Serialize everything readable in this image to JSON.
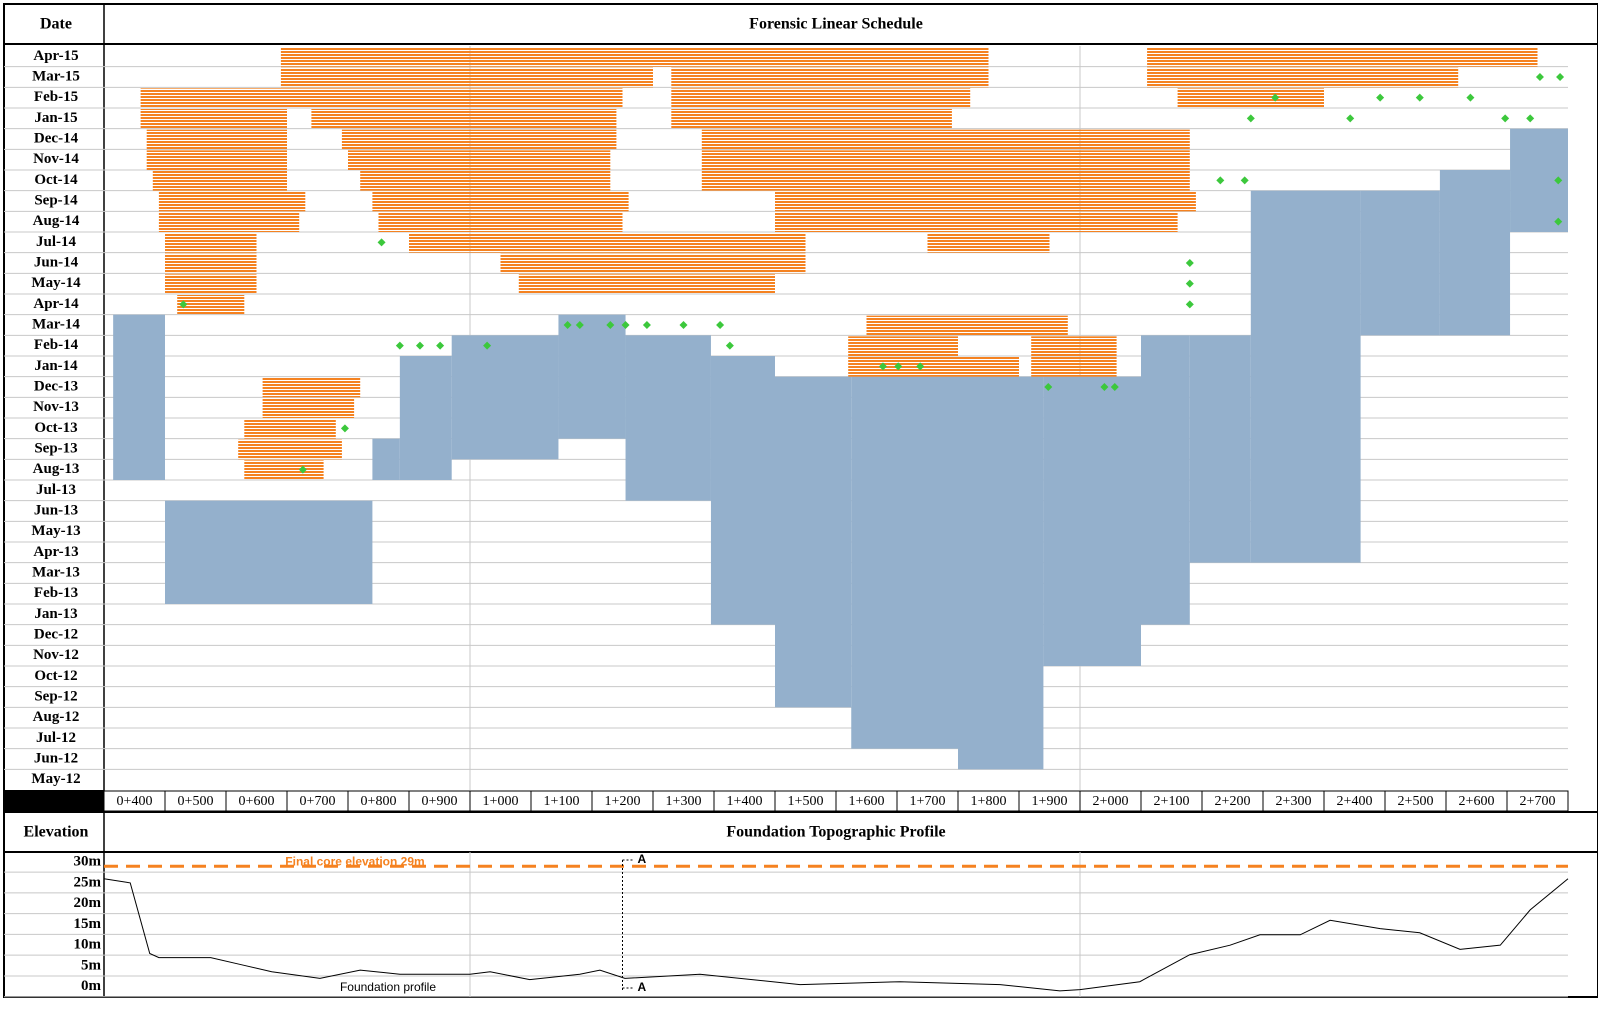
{
  "chart_data": [
    {
      "type": "linear-schedule",
      "title": "Forensic Linear Schedule",
      "y_label": "Date",
      "categories": [
        "May-12",
        "Jun-12",
        "Jul-12",
        "Aug-12",
        "Sep-12",
        "Oct-12",
        "Nov-12",
        "Dec-12",
        "Jan-13",
        "Feb-13",
        "Mar-13",
        "Apr-13",
        "May-13",
        "Jun-13",
        "Jul-13",
        "Aug-13",
        "Sep-13",
        "Oct-13",
        "Nov-13",
        "Dec-13",
        "Jan-14",
        "Feb-14",
        "Mar-14",
        "Apr-14",
        "May-14",
        "Jun-14",
        "Jul-14",
        "Aug-14",
        "Sep-14",
        "Oct-14",
        "Nov-14",
        "Dec-14",
        "Jan-15",
        "Feb-15",
        "Mar-15",
        "Apr-15"
      ],
      "xlim": [
        400,
        2800
      ],
      "xticks": [
        {
          "value": 400,
          "label": "0+400"
        },
        {
          "value": 500,
          "label": "0+500"
        },
        {
          "value": 600,
          "label": "0+600"
        },
        {
          "value": 700,
          "label": "0+700"
        },
        {
          "value": 800,
          "label": "0+800"
        },
        {
          "value": 900,
          "label": "0+900"
        },
        {
          "value": 1000,
          "label": "1+000"
        },
        {
          "value": 1100,
          "label": "1+100"
        },
        {
          "value": 1200,
          "label": "1+200"
        },
        {
          "value": 1300,
          "label": "1+300"
        },
        {
          "value": 1400,
          "label": "1+400"
        },
        {
          "value": 1500,
          "label": "1+500"
        },
        {
          "value": 1600,
          "label": "1+600"
        },
        {
          "value": 1700,
          "label": "1+700"
        },
        {
          "value": 1800,
          "label": "1+800"
        },
        {
          "value": 1900,
          "label": "1+900"
        },
        {
          "value": 2000,
          "label": "2+000"
        },
        {
          "value": 2100,
          "label": "2+100"
        },
        {
          "value": 2200,
          "label": "2+200"
        },
        {
          "value": 2300,
          "label": "2+300"
        },
        {
          "value": 2400,
          "label": "2+400"
        },
        {
          "value": 2500,
          "label": "2+500"
        },
        {
          "value": 2600,
          "label": "2+600"
        },
        {
          "value": 2700,
          "label": "2+700"
        }
      ],
      "blocked_areas": {
        "color": "#94b0cc",
        "areas": [
          {
            "x": [
              415,
              500
            ],
            "months": [
              "Aug-13",
              "Mar-14"
            ]
          },
          {
            "x": [
              500,
              840
            ],
            "months": [
              "Feb-13",
              "Jun-13"
            ]
          },
          {
            "x": [
              840,
              885
            ],
            "months": [
              "Aug-13",
              "Sep-13"
            ]
          },
          {
            "x": [
              885,
              970
            ],
            "months": [
              "Aug-13",
              "Jan-14"
            ]
          },
          {
            "x": [
              970,
              1145
            ],
            "months": [
              "Sep-13",
              "Feb-14"
            ]
          },
          {
            "x": [
              1145,
              1255
            ],
            "months": [
              "Oct-13",
              "Mar-14"
            ]
          },
          {
            "x": [
              1255,
              1395
            ],
            "months": [
              "Jul-13",
              "Feb-14"
            ]
          },
          {
            "x": [
              1395,
              1500
            ],
            "months": [
              "Jan-13",
              "Jan-14"
            ]
          },
          {
            "x": [
              1500,
              1625
            ],
            "months": [
              "Sep-12",
              "Dec-13"
            ]
          },
          {
            "x": [
              1625,
              1800
            ],
            "months": [
              "Jul-12",
              "Dec-13"
            ]
          },
          {
            "x": [
              1800,
              1940
            ],
            "months": [
              "Jun-12",
              "Dec-13"
            ]
          },
          {
            "x": [
              1940,
              2100
            ],
            "months": [
              "Nov-12",
              "Dec-13"
            ]
          },
          {
            "x": [
              2100,
              2180
            ],
            "months": [
              "Jan-13",
              "Feb-14"
            ]
          },
          {
            "x": [
              2180,
              2280
            ],
            "months": [
              "Apr-13",
              "Feb-14"
            ]
          },
          {
            "x": [
              2280,
              2460
            ],
            "months": [
              "Apr-13",
              "Sep-14"
            ]
          },
          {
            "x": [
              2460,
              2590
            ],
            "months": [
              "Mar-14",
              "Sep-14"
            ]
          },
          {
            "x": [
              2590,
              2705
            ],
            "months": [
              "Mar-14",
              "Oct-14"
            ]
          },
          {
            "x": [
              2705,
              2800
            ],
            "months": [
              "Aug-14",
              "Dec-14"
            ]
          }
        ]
      },
      "work": {
        "color": "#f58220",
        "items": [
          {
            "month": "Apr-15",
            "x": [
              690,
              1850
            ]
          },
          {
            "month": "Apr-15",
            "x": [
              2110,
              2750
            ]
          },
          {
            "month": "Mar-15",
            "x": [
              690,
              1300
            ]
          },
          {
            "month": "Mar-15",
            "x": [
              1330,
              1850
            ]
          },
          {
            "month": "Mar-15",
            "x": [
              2110,
              2620
            ]
          },
          {
            "month": "Feb-15",
            "x": [
              460,
              1250
            ]
          },
          {
            "month": "Feb-15",
            "x": [
              1330,
              1820
            ]
          },
          {
            "month": "Feb-15",
            "x": [
              2160,
              2400
            ]
          },
          {
            "month": "Jan-15",
            "x": [
              460,
              700
            ]
          },
          {
            "month": "Jan-15",
            "x": [
              740,
              1240
            ]
          },
          {
            "month": "Jan-15",
            "x": [
              1330,
              1790
            ]
          },
          {
            "month": "Dec-14",
            "x": [
              470,
              700
            ]
          },
          {
            "month": "Dec-14",
            "x": [
              790,
              1240
            ]
          },
          {
            "month": "Dec-14",
            "x": [
              1380,
              2180
            ]
          },
          {
            "month": "Nov-14",
            "x": [
              470,
              700
            ]
          },
          {
            "month": "Nov-14",
            "x": [
              800,
              1230
            ]
          },
          {
            "month": "Nov-14",
            "x": [
              1380,
              2180
            ]
          },
          {
            "month": "Oct-14",
            "x": [
              480,
              700
            ]
          },
          {
            "month": "Oct-14",
            "x": [
              820,
              1230
            ]
          },
          {
            "month": "Oct-14",
            "x": [
              1380,
              2180
            ]
          },
          {
            "month": "Sep-14",
            "x": [
              490,
              730
            ]
          },
          {
            "month": "Sep-14",
            "x": [
              840,
              1260
            ]
          },
          {
            "month": "Sep-14",
            "x": [
              1500,
              2190
            ]
          },
          {
            "month": "Aug-14",
            "x": [
              490,
              720
            ]
          },
          {
            "month": "Aug-14",
            "x": [
              850,
              1250
            ]
          },
          {
            "month": "Aug-14",
            "x": [
              1500,
              2160
            ]
          },
          {
            "month": "Jul-14",
            "x": [
              500,
              650
            ]
          },
          {
            "month": "Jul-14",
            "x": [
              900,
              1550
            ]
          },
          {
            "month": "Jul-14",
            "x": [
              1750,
              1950
            ]
          },
          {
            "month": "Jun-14",
            "x": [
              500,
              650
            ]
          },
          {
            "month": "Jun-14",
            "x": [
              1050,
              1550
            ]
          },
          {
            "month": "May-14",
            "x": [
              500,
              650
            ]
          },
          {
            "month": "May-14",
            "x": [
              1080,
              1500
            ]
          },
          {
            "month": "Apr-14",
            "x": [
              520,
              630
            ]
          },
          {
            "month": "Mar-14",
            "x": [
              1650,
              1980
            ]
          },
          {
            "month": "Feb-14",
            "x": [
              1620,
              1800
            ]
          },
          {
            "month": "Feb-14",
            "x": [
              1920,
              2060
            ]
          },
          {
            "month": "Jan-14",
            "x": [
              1620,
              1900
            ]
          },
          {
            "month": "Jan-14",
            "x": [
              1920,
              2060
            ]
          },
          {
            "month": "Dec-13",
            "x": [
              660,
              820
            ]
          },
          {
            "month": "Nov-13",
            "x": [
              660,
              810
            ]
          },
          {
            "month": "Oct-13",
            "x": [
              630,
              780
            ]
          },
          {
            "month": "Sep-13",
            "x": [
              620,
              790
            ]
          },
          {
            "month": "Aug-13",
            "x": [
              630,
              760
            ]
          }
        ]
      },
      "milestones": {
        "color": "#3cc83c",
        "points": [
          {
            "month": "Apr-14",
            "x": 530
          },
          {
            "month": "Jul-14",
            "x": 855
          },
          {
            "month": "Mar-14",
            "x": 1160
          },
          {
            "month": "Mar-14",
            "x": 1180
          },
          {
            "month": "Mar-14",
            "x": 1230
          },
          {
            "month": "Mar-14",
            "x": 1255
          },
          {
            "month": "Mar-14",
            "x": 1290
          },
          {
            "month": "Mar-14",
            "x": 1350
          },
          {
            "month": "Mar-14",
            "x": 1410
          },
          {
            "month": "Feb-14",
            "x": 885
          },
          {
            "month": "Feb-14",
            "x": 918
          },
          {
            "month": "Feb-14",
            "x": 951
          },
          {
            "month": "Feb-14",
            "x": 1028
          },
          {
            "month": "Feb-14",
            "x": 1426
          },
          {
            "month": "Jan-14",
            "x": 1677
          },
          {
            "month": "Jan-14",
            "x": 1702
          },
          {
            "month": "Jan-14",
            "x": 1738
          },
          {
            "month": "Dec-13",
            "x": 1948
          },
          {
            "month": "Dec-13",
            "x": 2040
          },
          {
            "month": "Dec-13",
            "x": 2057
          },
          {
            "month": "Oct-13",
            "x": 795
          },
          {
            "month": "Aug-13",
            "x": 726
          },
          {
            "month": "Jan-15",
            "x": 2280
          },
          {
            "month": "Jan-15",
            "x": 2443
          },
          {
            "month": "Feb-15",
            "x": 2320
          },
          {
            "month": "Feb-15",
            "x": 2492
          },
          {
            "month": "Feb-15",
            "x": 2557
          },
          {
            "month": "Feb-15",
            "x": 2640
          },
          {
            "month": "Jun-14",
            "x": 2180
          },
          {
            "month": "May-14",
            "x": 2180
          },
          {
            "month": "Apr-14",
            "x": 2180
          },
          {
            "month": "Oct-14",
            "x": 2230
          },
          {
            "month": "Oct-14",
            "x": 2270
          },
          {
            "month": "Mar-15",
            "x": 2754
          },
          {
            "month": "Mar-15",
            "x": 2787
          },
          {
            "month": "Jan-15",
            "x": 2697
          },
          {
            "month": "Jan-15",
            "x": 2738
          },
          {
            "month": "Oct-14",
            "x": 2784
          },
          {
            "month": "Aug-14",
            "x": 2784
          }
        ]
      }
    },
    {
      "type": "line",
      "title": "Foundation Topographic Profile",
      "y_label": "Elevation",
      "x": [
        400,
        443,
        475,
        490,
        575,
        625,
        675,
        754,
        820,
        885,
        1000,
        1033,
        1098,
        1180,
        1213,
        1254,
        1377,
        1541,
        1705,
        1869,
        1967,
        2000,
        2098,
        2180,
        2246,
        2295,
        2361,
        2410,
        2492,
        2557,
        2623,
        2689,
        2738,
        2800
      ],
      "values": [
        26,
        25,
        8,
        7,
        7,
        5.3,
        3.6,
        2,
        4,
        3,
        3,
        3.6,
        1.7,
        3,
        4,
        2,
        3,
        0.5,
        1.2,
        0.5,
        -1,
        -0.7,
        1.2,
        7.7,
        10,
        12.5,
        12.5,
        16,
        14,
        13,
        9,
        10,
        18.5,
        26
      ],
      "color": "#000000",
      "xlim": [
        400,
        2800
      ],
      "ylim": [
        -2,
        31
      ],
      "yticks": [
        {
          "value": 0,
          "label": "0m"
        },
        {
          "value": 5,
          "label": "5m"
        },
        {
          "value": 10,
          "label": "10m"
        },
        {
          "value": 15,
          "label": "15m"
        },
        {
          "value": 20,
          "label": "20m"
        },
        {
          "value": 25,
          "label": "25m"
        },
        {
          "value": 30,
          "label": "30m"
        }
      ],
      "target": {
        "value": 29,
        "label": "Final core elevation 29m",
        "color": "#f58220"
      },
      "profile_label": "Foundation profile",
      "section": {
        "x": 1250,
        "label": "A"
      }
    }
  ]
}
